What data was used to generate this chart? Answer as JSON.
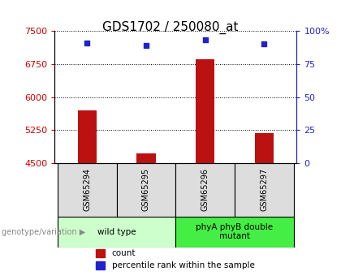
{
  "title": "GDS1702 / 250080_at",
  "samples": [
    "GSM65294",
    "GSM65295",
    "GSM65296",
    "GSM65297"
  ],
  "counts": [
    5700,
    4720,
    6860,
    5190
  ],
  "percentile_ranks": [
    91,
    89,
    93,
    90
  ],
  "y_min": 4500,
  "y_max": 7500,
  "y_ticks": [
    4500,
    5250,
    6000,
    6750,
    7500
  ],
  "y2_ticks": [
    0,
    25,
    50,
    75,
    100
  ],
  "bar_color": "#bb1111",
  "dot_color": "#2222cc",
  "groups": [
    {
      "label": "wild type",
      "samples": [
        0,
        1
      ],
      "color": "#ccffcc"
    },
    {
      "label": "phyA phyB double\nmutant",
      "samples": [
        2,
        3
      ],
      "color": "#44ee44"
    }
  ],
  "y_tick_color": "#cc0000",
  "y2_color": "#2222cc",
  "grid_color": "#000000",
  "title_fontsize": 11,
  "tick_fontsize": 8,
  "legend_label_count": "count",
  "legend_label_percentile": "percentile rank within the sample",
  "genotype_label": "genotype/variation"
}
